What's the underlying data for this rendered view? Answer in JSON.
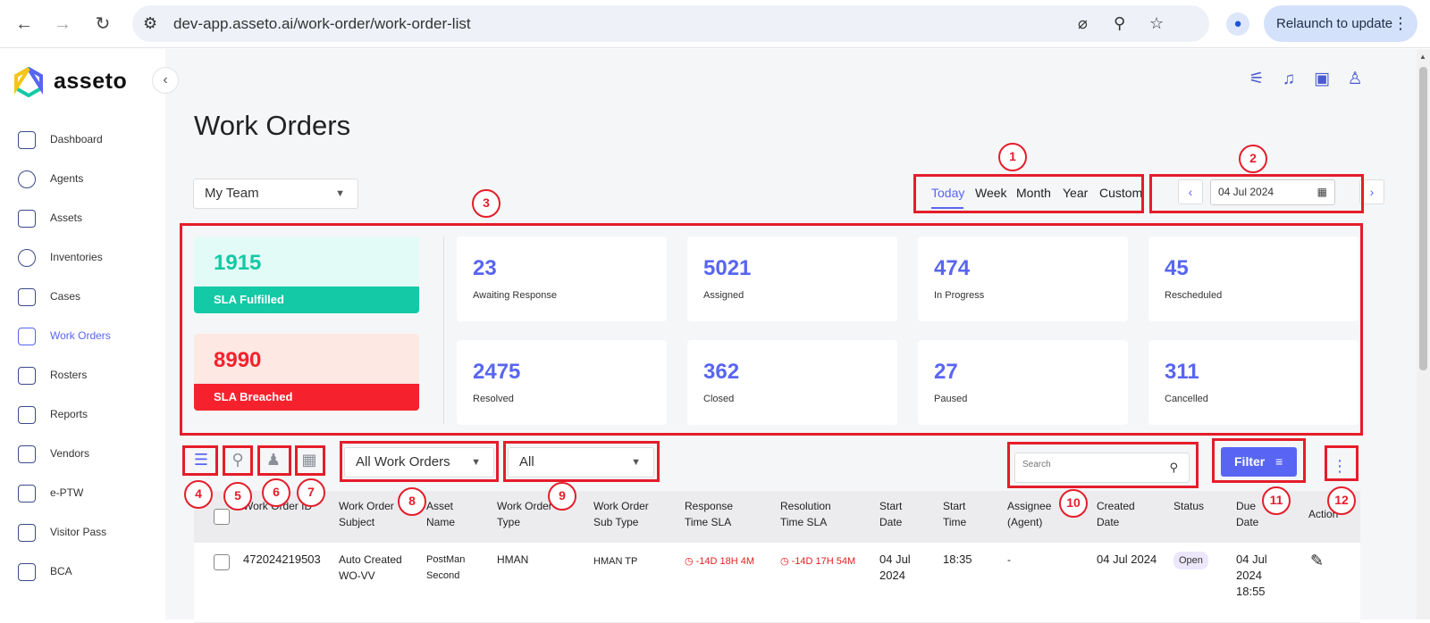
{
  "browser": {
    "url": "dev-app.asseto.ai/work-order/work-order-list",
    "relaunch_label": "Relaunch to update"
  },
  "sidebar": {
    "brand": "asseto",
    "items": [
      {
        "label": "Dashboard",
        "icon": "building-icon"
      },
      {
        "label": "Agents",
        "icon": "agents-icon"
      },
      {
        "label": "Assets",
        "icon": "assets-icon"
      },
      {
        "label": "Inventories",
        "icon": "inventories-icon"
      },
      {
        "label": "Cases",
        "icon": "cases-icon"
      },
      {
        "label": "Work Orders",
        "icon": "work-orders-icon",
        "active": true
      },
      {
        "label": "Rosters",
        "icon": "rosters-icon"
      },
      {
        "label": "Reports",
        "icon": "reports-icon"
      },
      {
        "label": "Vendors",
        "icon": "vendors-icon"
      },
      {
        "label": "e-PTW",
        "icon": "eptw-icon"
      },
      {
        "label": "Visitor Pass",
        "icon": "visitor-pass-icon"
      },
      {
        "label": "BCA",
        "icon": "bca-icon"
      }
    ]
  },
  "header": {
    "title": "Work Orders",
    "team_select": "My Team",
    "range_tabs": [
      "Today",
      "Week",
      "Month",
      "Year",
      "Custom"
    ],
    "active_tab": "Today",
    "date": "04 Jul 2024"
  },
  "sla": {
    "fulfilled": {
      "value": "1915",
      "label": "SLA Fulfilled",
      "color": "#14c9a5"
    },
    "breached": {
      "value": "8990",
      "label": "SLA Breached",
      "color": "#f5222d"
    }
  },
  "stats": [
    {
      "value": "23",
      "label": "Awaiting Response"
    },
    {
      "value": "5021",
      "label": "Assigned"
    },
    {
      "value": "474",
      "label": "In Progress"
    },
    {
      "value": "45",
      "label": "Rescheduled"
    },
    {
      "value": "2475",
      "label": "Resolved"
    },
    {
      "value": "362",
      "label": "Closed"
    },
    {
      "value": "27",
      "label": "Paused"
    },
    {
      "value": "311",
      "label": "Cancelled"
    }
  ],
  "toolbar": {
    "work_order_filter": "All Work Orders",
    "type_filter": "All",
    "search_placeholder": "Search",
    "filter_label": "Filter"
  },
  "table": {
    "headers": [
      "Work Order ID",
      "Work Order Subject",
      "Asset Name",
      "Work Order Type",
      "Work Order Sub Type",
      "Response Time SLA",
      "Resolution Time SLA",
      "Start Date",
      "Start Time",
      "Assignee (Agent)",
      "Created Date",
      "Status",
      "Due Date",
      "Action"
    ],
    "rows": [
      {
        "id": "472024219503",
        "subject": "Auto Created WO-VV",
        "asset": "PostMan Second",
        "type": "HMAN",
        "sub_type": "HMAN TP",
        "response_sla": "-14D 18H 4M",
        "resolution_sla": "-14D 17H 54M",
        "start_date": "04 Jul 2024",
        "start_time": "18:35",
        "assignee": "-",
        "created": "04 Jul 2024",
        "status": "Open",
        "due": "04 Jul 2024 18:55"
      }
    ]
  },
  "annotations": [
    "1",
    "2",
    "3",
    "4",
    "5",
    "6",
    "7",
    "8",
    "9",
    "10",
    "11",
    "12"
  ],
  "colors": {
    "accent": "#5865f2",
    "annotation": "#e51d2a"
  }
}
